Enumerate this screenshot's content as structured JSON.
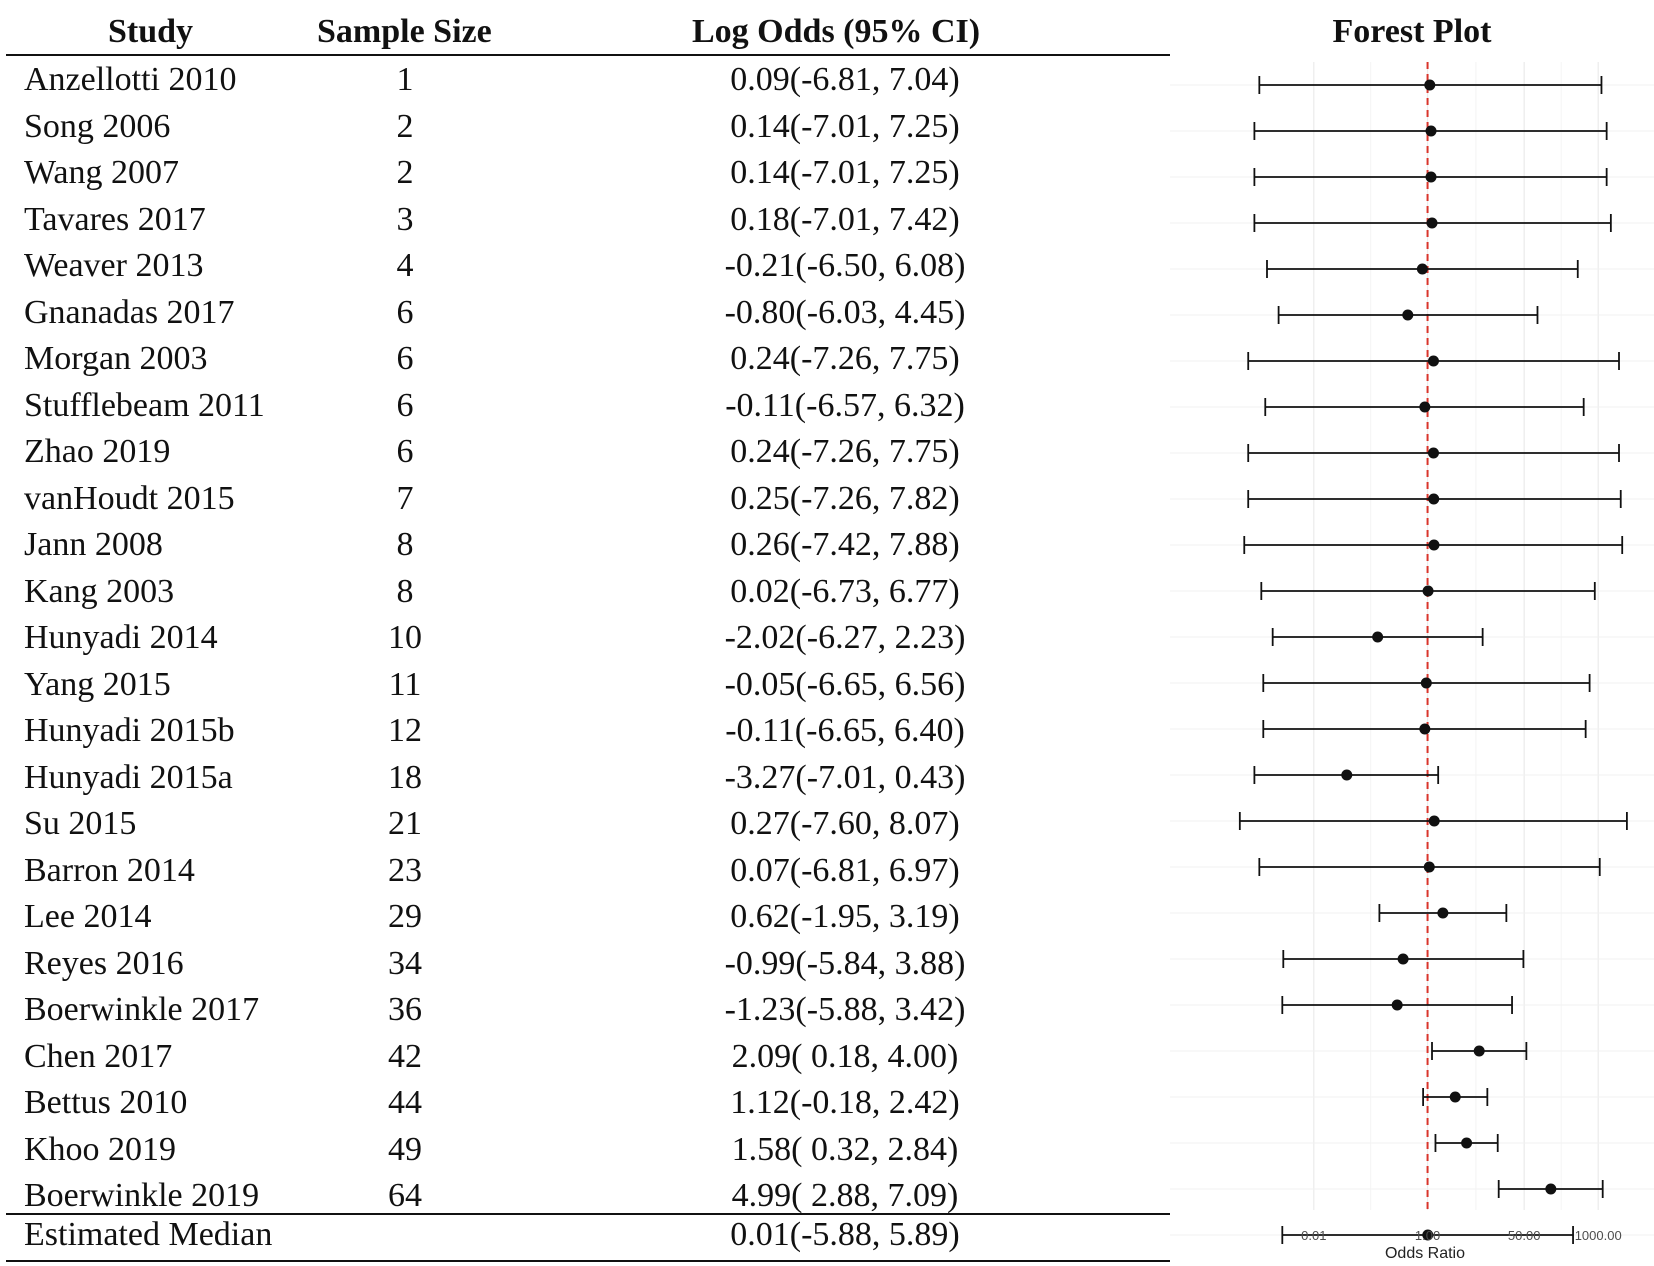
{
  "table": {
    "headers": {
      "study": "Study",
      "sample_size": "Sample Size",
      "log_odds": "Log Odds (95% CI)"
    },
    "rows": [
      {
        "study": "Anzellotti 2010",
        "n": "1",
        "ci": "0.09(-6.81, 7.04)"
      },
      {
        "study": "Song 2006",
        "n": "2",
        "ci": "0.14(-7.01, 7.25)"
      },
      {
        "study": "Wang 2007",
        "n": "2",
        "ci": "0.14(-7.01, 7.25)"
      },
      {
        "study": "Tavares 2017",
        "n": "3",
        "ci": "0.18(-7.01, 7.42)"
      },
      {
        "study": "Weaver 2013",
        "n": "4",
        "ci": "-0.21(-6.50, 6.08)"
      },
      {
        "study": "Gnanadas 2017",
        "n": "6",
        "ci": "-0.80(-6.03, 4.45)"
      },
      {
        "study": "Morgan 2003",
        "n": "6",
        "ci": "0.24(-7.26, 7.75)"
      },
      {
        "study": "Stufflebeam 2011",
        "n": "6",
        "ci": "-0.11(-6.57, 6.32)"
      },
      {
        "study": "Zhao 2019",
        "n": "6",
        "ci": "0.24(-7.26, 7.75)"
      },
      {
        "study": "vanHoudt 2015",
        "n": "7",
        "ci": "0.25(-7.26, 7.82)"
      },
      {
        "study": "Jann 2008",
        "n": "8",
        "ci": "0.26(-7.42, 7.88)"
      },
      {
        "study": "Kang 2003",
        "n": "8",
        "ci": "0.02(-6.73, 6.77)"
      },
      {
        "study": "Hunyadi 2014",
        "n": "10",
        "ci": "-2.02(-6.27, 2.23)"
      },
      {
        "study": "Yang 2015",
        "n": "11",
        "ci": "-0.05(-6.65, 6.56)"
      },
      {
        "study": "Hunyadi 2015b",
        "n": "12",
        "ci": "-0.11(-6.65, 6.40)"
      },
      {
        "study": "Hunyadi 2015a",
        "n": "18",
        "ci": "-3.27(-7.01, 0.43)"
      },
      {
        "study": "Su 2015",
        "n": "21",
        "ci": "0.27(-7.60, 8.07)"
      },
      {
        "study": "Barron 2014",
        "n": "23",
        "ci": "0.07(-6.81, 6.97)"
      },
      {
        "study": "Lee 2014",
        "n": "29",
        "ci": "0.62(-1.95, 3.19)"
      },
      {
        "study": "Reyes 2016",
        "n": "34",
        "ci": "-0.99(-5.84, 3.88)"
      },
      {
        "study": "Boerwinkle 2017",
        "n": "36",
        "ci": "-1.23(-5.88, 3.42)"
      },
      {
        "study": "Chen 2017",
        "n": "42",
        "ci": "2.09( 0.18, 4.00)"
      },
      {
        "study": "Bettus 2010",
        "n": "44",
        "ci": "1.12(-0.18, 2.42)"
      },
      {
        "study": "Khoo 2019",
        "n": "49",
        "ci": "1.58( 0.32, 2.84)"
      },
      {
        "study": "Boerwinkle 2019",
        "n": "64",
        "ci": "4.99( 2.88, 7.09)"
      }
    ],
    "summary": {
      "study": "Estimated Median",
      "ci": "0.01(-5.88, 5.89)"
    }
  },
  "colors": {
    "ink": "#111111",
    "ref_line": "#d9342b",
    "grid": "#ebebeb",
    "axis_text": "#4d4d4d"
  },
  "chart_data": {
    "type": "forest",
    "title": "Forest Plot",
    "xlabel": "Odds Ratio",
    "x_scale": "log",
    "xlim_log_odds": [
      -8.2,
      8.6
    ],
    "x_ticks": [
      {
        "log_odds": -4.605,
        "label": "0.01"
      },
      {
        "log_odds": 0,
        "label": "1.00"
      },
      {
        "log_odds": 3.912,
        "label": "50.00"
      },
      {
        "log_odds": 6.908,
        "label": "1000.00"
      }
    ],
    "reference_line": {
      "log_odds": 0,
      "style": "dashed"
    },
    "intervals": [
      {
        "estimate": 0.09,
        "lower": -6.81,
        "upper": 7.04
      },
      {
        "estimate": 0.14,
        "lower": -7.01,
        "upper": 7.25
      },
      {
        "estimate": 0.14,
        "lower": -7.01,
        "upper": 7.25
      },
      {
        "estimate": 0.18,
        "lower": -7.01,
        "upper": 7.42
      },
      {
        "estimate": -0.21,
        "lower": -6.5,
        "upper": 6.08
      },
      {
        "estimate": -0.8,
        "lower": -6.03,
        "upper": 4.45
      },
      {
        "estimate": 0.24,
        "lower": -7.26,
        "upper": 7.75
      },
      {
        "estimate": -0.11,
        "lower": -6.57,
        "upper": 6.32
      },
      {
        "estimate": 0.24,
        "lower": -7.26,
        "upper": 7.75
      },
      {
        "estimate": 0.25,
        "lower": -7.26,
        "upper": 7.82
      },
      {
        "estimate": 0.26,
        "lower": -7.42,
        "upper": 7.88
      },
      {
        "estimate": 0.02,
        "lower": -6.73,
        "upper": 6.77
      },
      {
        "estimate": -2.02,
        "lower": -6.27,
        "upper": 2.23
      },
      {
        "estimate": -0.05,
        "lower": -6.65,
        "upper": 6.56
      },
      {
        "estimate": -0.11,
        "lower": -6.65,
        "upper": 6.4
      },
      {
        "estimate": -3.27,
        "lower": -7.01,
        "upper": 0.43
      },
      {
        "estimate": 0.27,
        "lower": -7.6,
        "upper": 8.07
      },
      {
        "estimate": 0.07,
        "lower": -6.81,
        "upper": 6.97
      },
      {
        "estimate": 0.62,
        "lower": -1.95,
        "upper": 3.19
      },
      {
        "estimate": -0.99,
        "lower": -5.84,
        "upper": 3.88
      },
      {
        "estimate": -1.23,
        "lower": -5.88,
        "upper": 3.42
      },
      {
        "estimate": 2.09,
        "lower": 0.18,
        "upper": 4.0
      },
      {
        "estimate": 1.12,
        "lower": -0.18,
        "upper": 2.42
      },
      {
        "estimate": 1.58,
        "lower": 0.32,
        "upper": 2.84
      },
      {
        "estimate": 4.99,
        "lower": 2.88,
        "upper": 7.09
      },
      {
        "estimate": 0.01,
        "lower": -5.88,
        "upper": 5.89
      }
    ]
  }
}
